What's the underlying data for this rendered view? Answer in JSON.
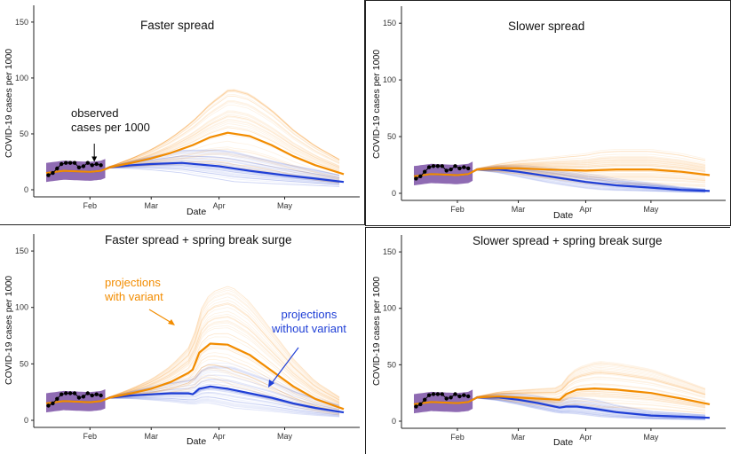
{
  "chart_data": [
    {
      "type": "line",
      "title": "Faster spread",
      "xlabel": "Date",
      "ylabel": "COVID-19 cases per 1000",
      "x_ticks": [
        "Feb",
        "Mar",
        "Apr",
        "May"
      ],
      "y_ticks": [
        0,
        50,
        100,
        150
      ],
      "ylim": [
        0,
        165
      ],
      "x_range": [
        "2021-01-12",
        "2021-05-28"
      ],
      "annotation": [
        "observed",
        "cases per 1000"
      ],
      "series": [
        {
          "key": "observed",
          "color": "#000000",
          "x": [
            "2021-01-13",
            "2021-01-15",
            "2021-01-17",
            "2021-01-19",
            "2021-01-21",
            "2021-01-23",
            "2021-01-25",
            "2021-01-27",
            "2021-01-29",
            "2021-01-31",
            "2021-02-02",
            "2021-02-04",
            "2021-02-06"
          ],
          "y": [
            13,
            15,
            19,
            23,
            24,
            24,
            24,
            20,
            21,
            24,
            22,
            23,
            22
          ]
        },
        {
          "key": "with_variant",
          "color": "#f28c00",
          "x": [
            "2021-01-12",
            "2021-01-20",
            "2021-02-01",
            "2021-02-06",
            "2021-02-10",
            "2021-02-20",
            "2021-03-01",
            "2021-03-10",
            "2021-03-20",
            "2021-03-28",
            "2021-04-05",
            "2021-04-15",
            "2021-04-25",
            "2021-05-05",
            "2021-05-15",
            "2021-05-28"
          ],
          "y": [
            15,
            17,
            16,
            17,
            20,
            24,
            28,
            33,
            40,
            47,
            51,
            48,
            40,
            30,
            22,
            14
          ]
        },
        {
          "key": "without_variant",
          "color": "#1f3fd6",
          "x": [
            "2021-01-12",
            "2021-01-20",
            "2021-02-01",
            "2021-02-06",
            "2021-02-10",
            "2021-02-20",
            "2021-03-01",
            "2021-03-15",
            "2021-04-01",
            "2021-04-15",
            "2021-05-01",
            "2021-05-15",
            "2021-05-28"
          ],
          "y": [
            15,
            17,
            16,
            17,
            20,
            22,
            23,
            24,
            21,
            17,
            13,
            10,
            7
          ]
        }
      ]
    },
    {
      "type": "line",
      "title": "Slower spread",
      "xlabel": "Date",
      "ylabel": "COVID-19 cases per 1000",
      "x_ticks": [
        "Feb",
        "Mar",
        "Apr",
        "May"
      ],
      "y_ticks": [
        0,
        50,
        100,
        150
      ],
      "ylim": [
        0,
        165
      ],
      "x_range": [
        "2021-01-12",
        "2021-05-28"
      ],
      "series": [
        {
          "key": "observed",
          "color": "#000000",
          "x": [
            "2021-01-13",
            "2021-01-15",
            "2021-01-17",
            "2021-01-19",
            "2021-01-21",
            "2021-01-23",
            "2021-01-25",
            "2021-01-27",
            "2021-01-29",
            "2021-01-31",
            "2021-02-02",
            "2021-02-04",
            "2021-02-06"
          ],
          "y": [
            13,
            15,
            19,
            23,
            24,
            24,
            24,
            20,
            21,
            24,
            22,
            23,
            22
          ]
        },
        {
          "key": "with_variant",
          "color": "#f28c00",
          "x": [
            "2021-01-12",
            "2021-01-20",
            "2021-02-01",
            "2021-02-06",
            "2021-02-10",
            "2021-02-20",
            "2021-03-01",
            "2021-03-15",
            "2021-04-01",
            "2021-04-15",
            "2021-05-01",
            "2021-05-15",
            "2021-05-28"
          ],
          "y": [
            15,
            17,
            16,
            17,
            21,
            22,
            22,
            21,
            20,
            21,
            21,
            19,
            16
          ]
        },
        {
          "key": "without_variant",
          "color": "#1f3fd6",
          "x": [
            "2021-01-12",
            "2021-01-20",
            "2021-02-01",
            "2021-02-06",
            "2021-02-10",
            "2021-02-20",
            "2021-03-01",
            "2021-03-15",
            "2021-04-01",
            "2021-04-15",
            "2021-05-01",
            "2021-05-15",
            "2021-05-28"
          ],
          "y": [
            15,
            17,
            16,
            17,
            21,
            21,
            19,
            15,
            10,
            7,
            5,
            3,
            2
          ]
        }
      ]
    },
    {
      "type": "line",
      "title": "Faster spread + spring break surge",
      "xlabel": "Date",
      "ylabel": "COVID-19 cases per 1000",
      "x_ticks": [
        "Feb",
        "Mar",
        "Apr",
        "May"
      ],
      "y_ticks": [
        0,
        50,
        100,
        150
      ],
      "ylim": [
        0,
        165
      ],
      "x_range": [
        "2021-01-12",
        "2021-05-28"
      ],
      "annotations": [
        {
          "lines": [
            "projections",
            "with variant"
          ],
          "color": "#f28c00"
        },
        {
          "lines": [
            "projections",
            "without variant"
          ],
          "color": "#1f3fd6"
        }
      ],
      "series": [
        {
          "key": "observed",
          "color": "#000000",
          "x": [
            "2021-01-13",
            "2021-01-15",
            "2021-01-17",
            "2021-01-19",
            "2021-01-21",
            "2021-01-23",
            "2021-01-25",
            "2021-01-27",
            "2021-01-29",
            "2021-01-31",
            "2021-02-02",
            "2021-02-04",
            "2021-02-06"
          ],
          "y": [
            13,
            15,
            19,
            23,
            24,
            24,
            24,
            20,
            21,
            24,
            22,
            23,
            22
          ]
        },
        {
          "key": "with_variant",
          "color": "#f28c00",
          "x": [
            "2021-01-12",
            "2021-01-20",
            "2021-02-01",
            "2021-02-06",
            "2021-02-10",
            "2021-02-20",
            "2021-03-01",
            "2021-03-10",
            "2021-03-18",
            "2021-03-20",
            "2021-03-23",
            "2021-03-28",
            "2021-04-05",
            "2021-04-15",
            "2021-04-25",
            "2021-05-05",
            "2021-05-15",
            "2021-05-28"
          ],
          "y": [
            15,
            17,
            16,
            17,
            20,
            24,
            28,
            34,
            42,
            45,
            60,
            68,
            67,
            58,
            44,
            30,
            19,
            10
          ]
        },
        {
          "key": "without_variant",
          "color": "#1f3fd6",
          "x": [
            "2021-01-12",
            "2021-01-20",
            "2021-02-01",
            "2021-02-06",
            "2021-02-10",
            "2021-02-20",
            "2021-03-01",
            "2021-03-10",
            "2021-03-18",
            "2021-03-20",
            "2021-03-23",
            "2021-03-28",
            "2021-04-05",
            "2021-04-15",
            "2021-04-25",
            "2021-05-05",
            "2021-05-15",
            "2021-05-28"
          ],
          "y": [
            15,
            17,
            16,
            17,
            20,
            22,
            23,
            24,
            24,
            23,
            28,
            30,
            28,
            24,
            20,
            15,
            11,
            7
          ]
        }
      ]
    },
    {
      "type": "line",
      "title": "Slower spread + spring break surge",
      "xlabel": "Date",
      "ylabel": "COVID-19 cases per 1000",
      "x_ticks": [
        "Feb",
        "Mar",
        "Apr",
        "May"
      ],
      "y_ticks": [
        0,
        50,
        100,
        150
      ],
      "ylim": [
        0,
        165
      ],
      "x_range": [
        "2021-01-12",
        "2021-05-28"
      ],
      "series": [
        {
          "key": "observed",
          "color": "#000000",
          "x": [
            "2021-01-13",
            "2021-01-15",
            "2021-01-17",
            "2021-01-19",
            "2021-01-21",
            "2021-01-23",
            "2021-01-25",
            "2021-01-27",
            "2021-01-29",
            "2021-01-31",
            "2021-02-02",
            "2021-02-04",
            "2021-02-06"
          ],
          "y": [
            13,
            15,
            19,
            23,
            24,
            24,
            24,
            20,
            21,
            24,
            22,
            23,
            22
          ]
        },
        {
          "key": "with_variant",
          "color": "#f28c00",
          "x": [
            "2021-01-12",
            "2021-01-20",
            "2021-02-01",
            "2021-02-06",
            "2021-02-10",
            "2021-02-20",
            "2021-03-01",
            "2021-03-10",
            "2021-03-20",
            "2021-03-23",
            "2021-03-28",
            "2021-04-05",
            "2021-04-15",
            "2021-05-01",
            "2021-05-15",
            "2021-05-28"
          ],
          "y": [
            15,
            17,
            16,
            17,
            21,
            22,
            21,
            20,
            19,
            24,
            28,
            29,
            28,
            25,
            20,
            15
          ]
        },
        {
          "key": "without_variant",
          "color": "#1f3fd6",
          "x": [
            "2021-01-12",
            "2021-01-20",
            "2021-02-01",
            "2021-02-06",
            "2021-02-10",
            "2021-02-20",
            "2021-03-01",
            "2021-03-10",
            "2021-03-20",
            "2021-03-23",
            "2021-03-28",
            "2021-04-05",
            "2021-04-15",
            "2021-05-01",
            "2021-05-15",
            "2021-05-28"
          ],
          "y": [
            15,
            17,
            16,
            17,
            21,
            21,
            19,
            16,
            12,
            13,
            13,
            11,
            8,
            5,
            4,
            3
          ]
        }
      ]
    }
  ]
}
